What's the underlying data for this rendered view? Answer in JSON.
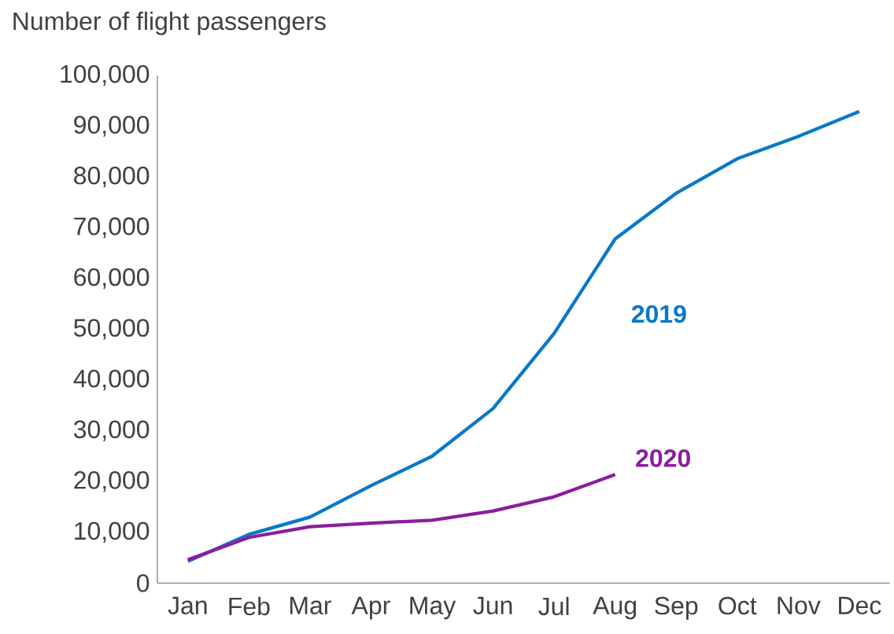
{
  "chart_data": {
    "type": "line",
    "ylabel": "Number of flight passengers",
    "categories": [
      "Jan",
      "Feb",
      "Mar",
      "Apr",
      "May",
      "Jun",
      "Jul",
      "Aug",
      "Sep",
      "Oct",
      "Nov",
      "Dec"
    ],
    "series": [
      {
        "name": "2019",
        "color": "#0a78c8",
        "values": [
          4300,
          9600,
          13000,
          19200,
          25000,
          34400,
          49200,
          67800,
          76800,
          83600,
          88000,
          92900
        ]
      },
      {
        "name": "2020",
        "color": "#8a1e9e",
        "values": [
          4600,
          9000,
          11100,
          11800,
          12400,
          14200,
          17000,
          21400,
          null,
          null,
          null,
          null
        ]
      }
    ],
    "ylim": [
      0,
      100000
    ],
    "yticks": [
      {
        "value": 0,
        "label": "0"
      },
      {
        "value": 10000,
        "label": "10,000"
      },
      {
        "value": 20000,
        "label": "20,000"
      },
      {
        "value": 30000,
        "label": "30,000"
      },
      {
        "value": 40000,
        "label": "40,000"
      },
      {
        "value": 50000,
        "label": "50,000"
      },
      {
        "value": 60000,
        "label": "60,000"
      },
      {
        "value": 70000,
        "label": "70,000"
      },
      {
        "value": 80000,
        "label": "80,000"
      },
      {
        "value": 90000,
        "label": "90,000"
      },
      {
        "value": 100000,
        "label": "100,000"
      }
    ],
    "grid": false,
    "legend": false,
    "marker": "none",
    "line_style": "solid"
  }
}
